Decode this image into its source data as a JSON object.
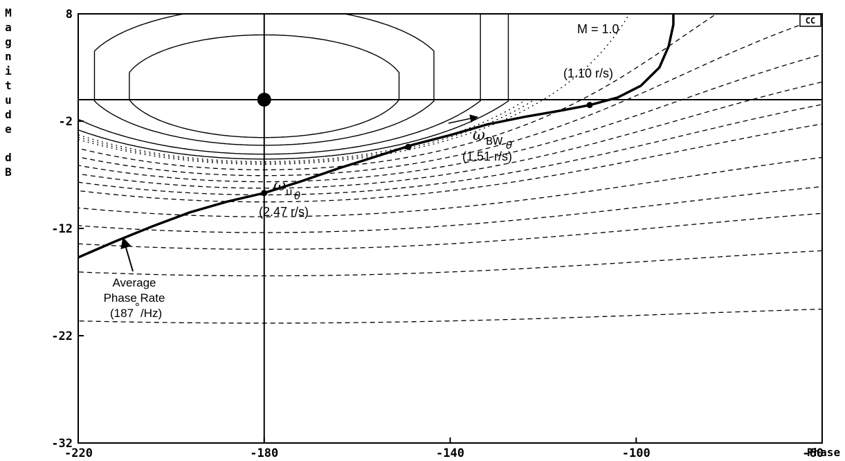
{
  "chart_data": {
    "type": "line",
    "xlabel": "Phase",
    "ylabel": "Magnitude dB",
    "xlim": [
      -220,
      -60
    ],
    "ylim": [
      -32,
      8
    ],
    "x_ticks": [
      "-220",
      "-180",
      "-140",
      "-100",
      "-60"
    ],
    "y_ticks": [
      "8",
      "-2",
      "-12",
      "-22",
      "-32"
    ],
    "badge": "CC",
    "grid": "Nichols closed-loop magnitude contours (dashed and dotted) centered at (-180, 0 dB); crosshair lines at phase -180 and 0 dB",
    "series": [
      {
        "x": [
          -220,
          -212,
          -204,
          -196,
          -188,
          -180,
          -172,
          -164,
          -156,
          -148,
          -140,
          -132,
          -124,
          -116,
          -110,
          -104,
          -99,
          -95,
          -93,
          -92,
          -92
        ],
        "y": [
          -14.7,
          -13.2,
          -11.8,
          -10.5,
          -9.5,
          -8.7,
          -7.6,
          -6.4,
          -5.3,
          -4.2,
          -3.3,
          -2.3,
          -1.6,
          -1.0,
          -0.5,
          0.2,
          1.3,
          3.0,
          5.0,
          7.0,
          8.0
        ]
      }
    ],
    "points": [
      {
        "x": -180,
        "y": -8.7,
        "symbol": "ω",
        "sub": "u",
        "subsub": "θ",
        "value": "(2.47 r/s)"
      },
      {
        "x": -149,
        "y": -4.4,
        "symbol": "ω",
        "sub": "BW",
        "subsub": "θ",
        "value": "(1.51 r/s)"
      },
      {
        "x": -110,
        "y": -0.5,
        "value": "(1.10 r/s)"
      }
    ],
    "annotations": {
      "m_contour": "M = 1.0",
      "phase_rate_1": "Average",
      "phase_rate_2": "Phase Rate",
      "phase_rate_3": "(187",
      "phase_rate_deg": "°",
      "phase_rate_4": "/Hz)"
    }
  }
}
